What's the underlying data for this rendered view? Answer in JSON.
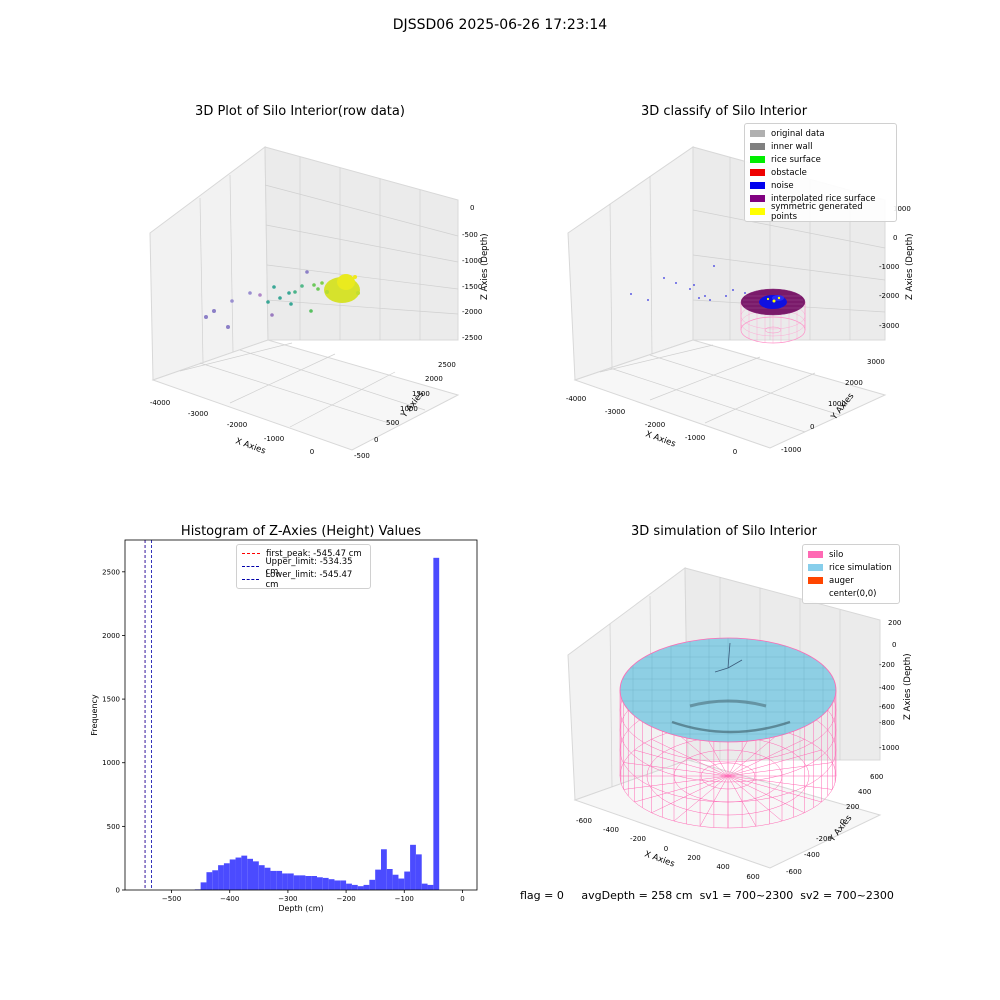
{
  "suptitle": "DJSSD06 2025-06-26 17:23:14",
  "panel_tl": {
    "title": "3D Plot of Silo Interior(row data)",
    "xlabel": "X Axies",
    "ylabel": "Y Axies",
    "zlabel": "Z Axies (Depth)",
    "x_ticks": [
      "-4000",
      "-3000",
      "-2000",
      "-1000",
      "0"
    ],
    "y_ticks": [
      "-500",
      "0",
      "500",
      "1000",
      "1500",
      "2000",
      "2500"
    ],
    "z_ticks": [
      "-2500",
      "-2000",
      "-1500",
      "-1000",
      "-500",
      "0"
    ]
  },
  "panel_tr": {
    "title": "3D classify of Silo Interior",
    "xlabel": "X Axies",
    "ylabel": "Y Axies",
    "zlabel": "Z Axies (Depth)",
    "x_ticks": [
      "-4000",
      "-3000",
      "-2000",
      "-1000",
      "0"
    ],
    "y_ticks": [
      "-1000",
      "0",
      "1000",
      "2000",
      "3000"
    ],
    "z_ticks": [
      "-3000",
      "-2000",
      "-1000",
      "0",
      "1000"
    ],
    "legend": [
      {
        "label": "original data",
        "color": "#b0b0b0"
      },
      {
        "label": "inner wall",
        "color": "#808080"
      },
      {
        "label": "rice surface",
        "color": "#00ee00"
      },
      {
        "label": "obstacle",
        "color": "#ee0000"
      },
      {
        "label": "noise",
        "color": "#0000ee"
      },
      {
        "label": "interpolated rice surface",
        "color": "#800080"
      },
      {
        "label": "symmetric generated points",
        "color": "#ffff00"
      }
    ]
  },
  "panel_bl": {
    "legend": [
      {
        "label": "first_peak: -545.47 cm",
        "color": "#ff0000"
      },
      {
        "label": "Upper_limit: -534.35 cm",
        "color": "#0000aa"
      },
      {
        "label": "Lower_limit: -545.47 cm",
        "color": "#0000aa"
      }
    ]
  },
  "panel_br": {
    "title": "3D simulation of Silo Interior",
    "xlabel": "X Axies",
    "ylabel": "Y Axies",
    "zlabel": "Z Axies (Depth)",
    "x_ticks": [
      "-600",
      "-400",
      "-200",
      "0",
      "200",
      "400",
      "600"
    ],
    "y_ticks": [
      "-600",
      "-400",
      "-200",
      "0",
      "200",
      "400",
      "600"
    ],
    "z_ticks": [
      "-1000",
      "-800",
      "-600",
      "-400",
      "-200",
      "0",
      "200"
    ],
    "legend": [
      {
        "label": "silo",
        "color": "#ff69b4"
      },
      {
        "label": "rice simulation",
        "color": "#87ceeb"
      },
      {
        "label": "auger",
        "color": "#ff4500"
      },
      {
        "label": "center(0,0)",
        "color": "#ffffff"
      }
    ]
  },
  "chart_data": {
    "type": "bar",
    "title": "Histogram of Z-Axies (Height) Values",
    "xlabel": "Depth (cm)",
    "ylabel": "Frequency",
    "xlim": [
      -580,
      25
    ],
    "ylim": [
      0,
      2750
    ],
    "x_ticks": [
      -500,
      -400,
      -300,
      -200,
      -100,
      0
    ],
    "y_ticks": [
      0,
      500,
      1000,
      1500,
      2000,
      2500
    ],
    "bar_color": "#4b4bff",
    "bin_width": 10,
    "bins_start": [
      -460,
      -450,
      -440,
      -430,
      -420,
      -410,
      -400,
      -390,
      -380,
      -370,
      -360,
      -350,
      -340,
      -330,
      -320,
      -310,
      -300,
      -290,
      -280,
      -270,
      -260,
      -250,
      -240,
      -230,
      -220,
      -210,
      -200,
      -190,
      -180,
      -170,
      -160,
      -150,
      -140,
      -130,
      -120,
      -110,
      -100,
      -90,
      -80,
      -70,
      -60,
      -50,
      -40,
      -30,
      -20,
      -10
    ],
    "values": [
      5,
      60,
      140,
      155,
      195,
      210,
      240,
      255,
      270,
      245,
      225,
      195,
      175,
      150,
      150,
      130,
      130,
      115,
      115,
      110,
      110,
      100,
      95,
      85,
      75,
      75,
      50,
      40,
      30,
      40,
      80,
      160,
      320,
      165,
      120,
      90,
      145,
      355,
      280,
      50,
      40,
      2610,
      0,
      0,
      0,
      0
    ],
    "vlines": [
      {
        "name": "first_peak: -545.47 cm",
        "x": -545.47,
        "color": "#ff0000"
      },
      {
        "name": "Upper_limit: -534.35 cm",
        "x": -534.35,
        "color": "#0000aa"
      },
      {
        "name": "Lower_limit: -545.47 cm",
        "x": -545.47,
        "color": "#0000aa"
      }
    ],
    "legend_position": "upper-center"
  },
  "footer": {
    "flag": "flag = 0",
    "avg": "avgDepth = 258 cm",
    "sv1": "sv1 = 700~2300",
    "sv2": "sv2 = 700~2300"
  }
}
